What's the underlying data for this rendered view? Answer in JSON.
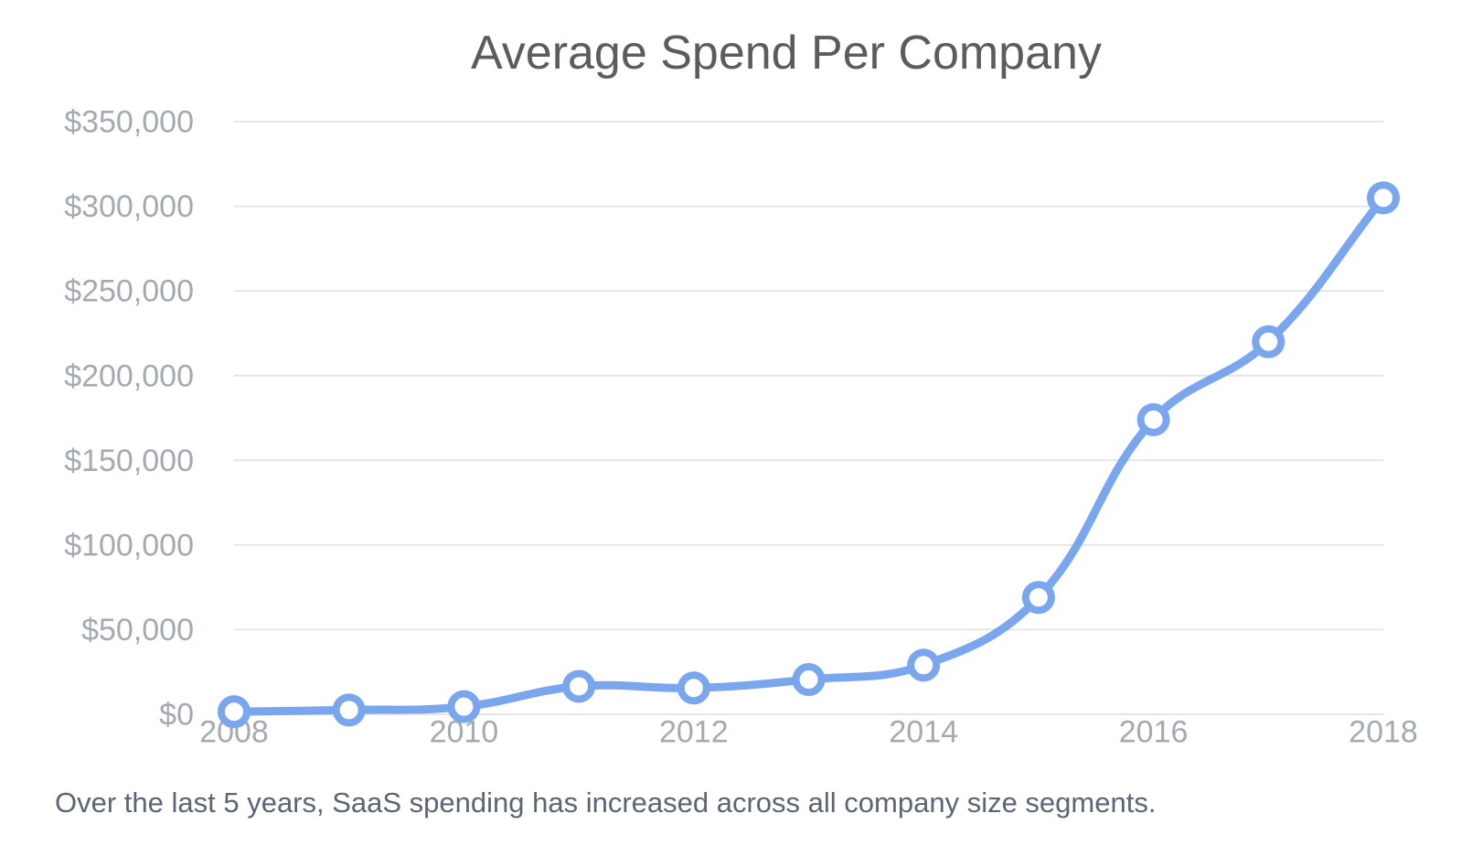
{
  "page": {
    "background_color": "#ffffff"
  },
  "chart_data": {
    "type": "line",
    "title": "Average Spend Per Company",
    "xlabel": "",
    "ylabel": "",
    "x": [
      2008,
      2009,
      2010,
      2011,
      2012,
      2013,
      2014,
      2015,
      2016,
      2017,
      2018
    ],
    "series": [
      {
        "name": "Average Spend Per Company",
        "values": [
          1500,
          2500,
          4500,
          16500,
          15500,
          20500,
          29000,
          69000,
          174000,
          220000,
          305000
        ]
      }
    ],
    "ylim": [
      0,
      350000
    ],
    "y_ticks": [
      {
        "value": 0,
        "label": "$0"
      },
      {
        "value": 50000,
        "label": "$50,000"
      },
      {
        "value": 100000,
        "label": "$100,000"
      },
      {
        "value": 150000,
        "label": "$150,000"
      },
      {
        "value": 200000,
        "label": "$200,000"
      },
      {
        "value": 250000,
        "label": "$250,000"
      },
      {
        "value": 300000,
        "label": "$300,000"
      },
      {
        "value": 350000,
        "label": "$350,000"
      }
    ],
    "x_tick_labels": [
      "2008",
      "2010",
      "2012",
      "2014",
      "2016",
      "2018"
    ],
    "grid": "horizontal-only",
    "legend": "none",
    "line_color": "#7aa6ee",
    "marker_fill_color": "#ffffff",
    "grid_color": "#e6e6e6",
    "tick_label_color": "#a4aab1",
    "title_color": "#5a5c60"
  },
  "caption": {
    "text": "Over the last 5 years, SaaS spending has increased across all company size segments.",
    "color": "#5b6576"
  }
}
